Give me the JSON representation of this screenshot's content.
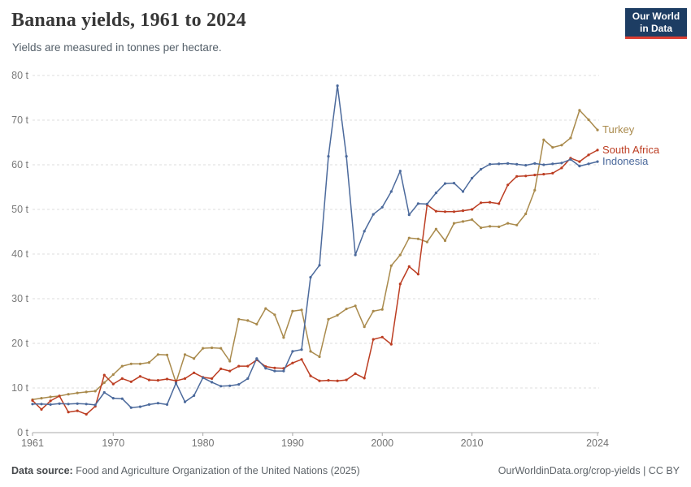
{
  "header": {
    "title": "Banana yields, 1961 to 2024",
    "subtitle": "Yields are measured in tonnes per hectare.",
    "logo": {
      "line1": "Our World",
      "line2": "in Data"
    }
  },
  "footer": {
    "source_label": "Data source:",
    "source_text": " Food and Agriculture Organization of the United Nations (2025)",
    "link_text": "OurWorldinData.org/crop-yields | CC BY"
  },
  "chart_data": {
    "type": "line",
    "title": "Banana yields, 1961 to 2024",
    "ylabel": "",
    "xlabel": "",
    "unit": "tonnes per hectare",
    "grid": true,
    "legend_position": "end-of-line-labels",
    "xlim": [
      1961,
      2024
    ],
    "ylim": [
      0,
      85
    ],
    "x_ticks": [
      1961,
      1970,
      1980,
      1990,
      2000,
      2010,
      2024
    ],
    "y_ticks": [
      0,
      10,
      20,
      30,
      40,
      50,
      60,
      70,
      80
    ],
    "y_tick_suffix": " t",
    "x": [
      1961,
      1962,
      1963,
      1964,
      1965,
      1966,
      1967,
      1968,
      1969,
      1970,
      1971,
      1972,
      1973,
      1974,
      1975,
      1976,
      1977,
      1978,
      1979,
      1980,
      1981,
      1982,
      1983,
      1984,
      1985,
      1986,
      1987,
      1988,
      1989,
      1990,
      1991,
      1992,
      1993,
      1994,
      1995,
      1996,
      1997,
      1998,
      1999,
      2000,
      2001,
      2002,
      2003,
      2004,
      2005,
      2006,
      2007,
      2008,
      2009,
      2010,
      2011,
      2012,
      2013,
      2014,
      2015,
      2016,
      2017,
      2018,
      2019,
      2020,
      2021,
      2022,
      2023,
      2024
    ],
    "series": [
      {
        "name": "Turkey",
        "color": "#A98A4C",
        "values": [
          7.4,
          7.7,
          8.0,
          8.2,
          8.6,
          8.9,
          9.1,
          9.3,
          11.2,
          13.0,
          14.9,
          15.4,
          15.4,
          15.7,
          17.5,
          17.4,
          11.2,
          17.5,
          16.6,
          18.9,
          19.0,
          18.9,
          16.0,
          25.4,
          25.1,
          24.3,
          27.8,
          26.4,
          21.3,
          27.2,
          27.5,
          18.2,
          17.0,
          25.4,
          26.3,
          27.7,
          28.4,
          23.7,
          27.2,
          27.6,
          37.4,
          39.8,
          43.6,
          43.4,
          42.7,
          45.6,
          43.0,
          46.9,
          47.3,
          47.7,
          45.9,
          46.2,
          46.1,
          46.9,
          46.5,
          49.0,
          54.3,
          65.6,
          63.9,
          64.4,
          66.0,
          72.2,
          70.1,
          67.8
        ]
      },
      {
        "name": "South Africa",
        "color": "#BC3D22",
        "values": [
          7.2,
          5.2,
          7.1,
          8.2,
          4.6,
          4.9,
          4.1,
          5.9,
          12.9,
          10.9,
          12.1,
          11.4,
          12.6,
          11.8,
          11.7,
          12.0,
          11.6,
          12.1,
          13.4,
          12.4,
          12.1,
          14.3,
          13.8,
          14.9,
          14.9,
          16.3,
          14.8,
          14.5,
          14.4,
          15.6,
          16.4,
          12.7,
          11.6,
          11.7,
          11.6,
          11.8,
          13.2,
          12.2,
          20.9,
          21.4,
          19.8,
          33.3,
          37.2,
          35.5,
          51.0,
          49.6,
          49.5,
          49.5,
          49.7,
          50.0,
          51.5,
          51.6,
          51.3,
          55.5,
          57.4,
          57.5,
          57.7,
          57.9,
          58.1,
          59.3,
          61.5,
          60.7,
          62.2,
          63.3
        ]
      },
      {
        "name": "Indonesia",
        "color": "#4C6A9C",
        "values": [
          6.4,
          6.4,
          6.3,
          6.5,
          6.4,
          6.5,
          6.4,
          6.2,
          9.0,
          7.7,
          7.6,
          5.6,
          5.8,
          6.3,
          6.6,
          6.3,
          11.1,
          6.9,
          8.3,
          12.3,
          11.3,
          10.4,
          10.5,
          10.8,
          12.1,
          16.6,
          14.4,
          13.8,
          13.8,
          18.2,
          18.6,
          34.8,
          37.5,
          61.9,
          77.7,
          61.9,
          39.8,
          45.1,
          48.9,
          50.5,
          54.0,
          58.6,
          48.8,
          51.3,
          51.2,
          53.7,
          55.8,
          55.9,
          54.0,
          57.0,
          59.0,
          60.1,
          60.2,
          60.3,
          60.1,
          59.9,
          60.3,
          60.0,
          60.2,
          60.4,
          61.2,
          59.7,
          60.2,
          60.7
        ]
      }
    ]
  }
}
